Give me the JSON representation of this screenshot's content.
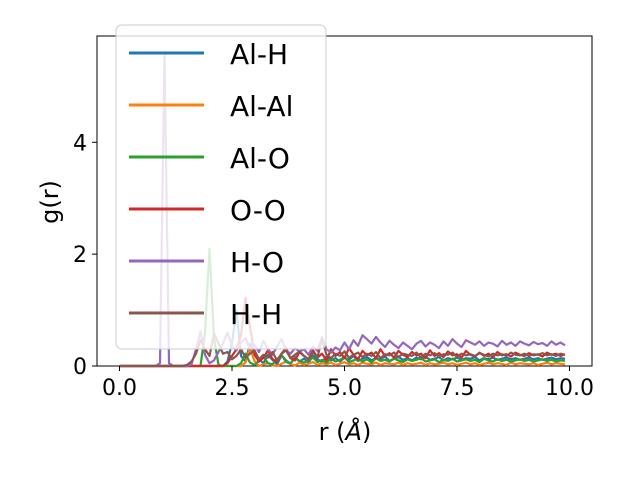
{
  "chart_data": {
    "type": "line",
    "title": "",
    "xlabel_text": "r (",
    "xlabel_unit": "Å",
    "xlabel_close": ")",
    "ylabel": "g(r)",
    "xlim": [
      -0.5,
      10.5
    ],
    "ylim": [
      0,
      5.9
    ],
    "xticks": [
      0.0,
      2.5,
      5.0,
      7.5,
      10.0
    ],
    "xtick_labels": [
      "0.0",
      "2.5",
      "5.0",
      "7.5",
      "10.0"
    ],
    "yticks": [
      0,
      2,
      4
    ],
    "ytick_labels": [
      "0",
      "2",
      "4"
    ],
    "grid": false,
    "legend_position": "top-left",
    "x_start": 0,
    "x_step": 0.1,
    "series": [
      {
        "name": "Al-H",
        "color": "#1f77b4",
        "values": [
          0,
          0,
          0,
          0,
          0,
          0,
          0,
          0,
          0,
          0,
          0,
          0,
          0,
          0,
          0,
          0,
          0,
          0,
          0,
          0,
          0,
          0,
          0,
          0,
          0.08,
          0.42,
          0.99,
          0.18,
          0.08,
          0.4,
          0.24,
          0.12,
          0.05,
          0.2,
          0.11,
          0.03,
          0.19,
          0.1,
          0.04,
          0.16,
          0.08,
          0.13,
          0.06,
          0.18,
          0.12,
          0.07,
          0.17,
          0.1,
          0.14,
          0.08,
          0.15,
          0.11,
          0.18,
          0.09,
          0.13,
          0.16,
          0.1,
          0.14,
          0.12,
          0.17,
          0.09,
          0.13,
          0.16,
          0.11,
          0.14,
          0.1,
          0.15,
          0.12,
          0.17,
          0.11,
          0.13,
          0.16,
          0.1,
          0.14,
          0.12,
          0.15,
          0.11,
          0.14,
          0.13,
          0.16,
          0.1,
          0.14,
          0.12,
          0.15,
          0.11,
          0.13,
          0.15,
          0.12,
          0.14,
          0.11,
          0.13,
          0.15,
          0.12,
          0.14,
          0.11,
          0.13,
          0.15,
          0.12,
          0.14,
          0.13
        ]
      },
      {
        "name": "Al-Al",
        "color": "#ff7f0e",
        "values": [
          0,
          0,
          0,
          0,
          0,
          0,
          0,
          0,
          0,
          0,
          0,
          0,
          0,
          0,
          0,
          0,
          0,
          0,
          0,
          0,
          0,
          0,
          0,
          0,
          0,
          0,
          0,
          0,
          0.06,
          0.32,
          0.09,
          0,
          0.03,
          0.05,
          0.01,
          0,
          0.04,
          0.08,
          0.03,
          0.01,
          0.06,
          0.02,
          0.04,
          0.07,
          0.02,
          0.05,
          0.03,
          0.06,
          0.02,
          0.04,
          0.07,
          0.03,
          0.05,
          0.02,
          0.06,
          0.04,
          0.03,
          0.06,
          0.02,
          0.05,
          0.04,
          0.03,
          0.06,
          0.02,
          0.05,
          0.03,
          0.04,
          0.06,
          0.02,
          0.05,
          0.03,
          0.04,
          0.06,
          0.03,
          0.05,
          0.02,
          0.04,
          0.06,
          0.03,
          0.05,
          0.02,
          0.04,
          0.06,
          0.03,
          0.05,
          0.04,
          0.02,
          0.06,
          0.03,
          0.05,
          0.04,
          0.03,
          0.05,
          0.02,
          0.04,
          0.06,
          0.03,
          0.05,
          0.04,
          0.03
        ]
      },
      {
        "name": "Al-O",
        "color": "#2ca02c",
        "values": [
          0,
          0,
          0,
          0,
          0,
          0,
          0,
          0,
          0,
          0,
          0,
          0,
          0,
          0,
          0,
          0,
          0,
          0,
          0,
          0.6,
          2.1,
          0.5,
          0.02,
          0,
          0,
          0,
          0,
          0.05,
          0.22,
          0.06,
          0.02,
          0.09,
          0.16,
          0.05,
          0.03,
          0.12,
          0.2,
          0.07,
          0.05,
          0.14,
          0.09,
          0.06,
          0.1,
          0.15,
          0.07,
          0.11,
          0.06,
          0.13,
          0.08,
          0.11,
          0.16,
          0.07,
          0.1,
          0.13,
          0.08,
          0.12,
          0.06,
          0.14,
          0.09,
          0.11,
          0.08,
          0.13,
          0.1,
          0.07,
          0.12,
          0.09,
          0.11,
          0.14,
          0.08,
          0.1,
          0.12,
          0.07,
          0.11,
          0.09,
          0.13,
          0.08,
          0.1,
          0.12,
          0.09,
          0.11,
          0.07,
          0.13,
          0.1,
          0.08,
          0.12,
          0.09,
          0.11,
          0.08,
          0.1,
          0.12,
          0.09,
          0.11,
          0.08,
          0.1,
          0.12,
          0.09,
          0.11,
          0.08,
          0.1,
          0.09
        ]
      },
      {
        "name": "O-O",
        "color": "#d62728",
        "values": [
          0,
          0,
          0,
          0,
          0,
          0,
          0,
          0,
          0,
          0,
          0,
          0,
          0,
          0,
          0,
          0,
          0,
          0,
          0,
          0,
          0,
          0,
          0,
          0,
          0.05,
          0.18,
          0.3,
          0.55,
          1.22,
          0.7,
          0.2,
          0.08,
          0.15,
          0.28,
          0.12,
          0.08,
          0.22,
          0.32,
          0.14,
          0.1,
          0.25,
          0.18,
          0.12,
          0.28,
          0.15,
          0.22,
          0.1,
          0.3,
          0.18,
          0.25,
          0.14,
          0.32,
          0.2,
          0.12,
          0.27,
          0.19,
          0.24,
          0.14,
          0.3,
          0.18,
          0.23,
          0.15,
          0.27,
          0.2,
          0.16,
          0.25,
          0.19,
          0.22,
          0.14,
          0.28,
          0.18,
          0.23,
          0.16,
          0.26,
          0.19,
          0.21,
          0.15,
          0.27,
          0.2,
          0.17,
          0.24,
          0.18,
          0.22,
          0.16,
          0.25,
          0.19,
          0.21,
          0.17,
          0.24,
          0.2,
          0.18,
          0.23,
          0.19,
          0.21,
          0.17,
          0.24,
          0.2,
          0.22,
          0.18,
          0.21
        ]
      },
      {
        "name": "H-O",
        "color": "#9467bd",
        "values": [
          0,
          0,
          0,
          0,
          0,
          0,
          0,
          0,
          0,
          0.05,
          5.6,
          0.05,
          0,
          0,
          0,
          0,
          0.03,
          0.3,
          0.62,
          0.2,
          0.05,
          0.1,
          0.25,
          0.4,
          0.6,
          0.35,
          0.28,
          0.42,
          0.5,
          0.3,
          0.38,
          0.25,
          0.45,
          0.3,
          0.2,
          0.35,
          0.48,
          0.28,
          0.22,
          0.32,
          0.26,
          0.3,
          0.2,
          0.35,
          0.27,
          0.52,
          0.3,
          0.24,
          0.33,
          0.28,
          0.42,
          0.3,
          0.46,
          0.36,
          0.55,
          0.48,
          0.4,
          0.52,
          0.42,
          0.34,
          0.45,
          0.38,
          0.32,
          0.42,
          0.36,
          0.3,
          0.4,
          0.45,
          0.35,
          0.42,
          0.38,
          0.32,
          0.44,
          0.36,
          0.48,
          0.4,
          0.34,
          0.46,
          0.42,
          0.38,
          0.44,
          0.36,
          0.42,
          0.4,
          0.35,
          0.45,
          0.38,
          0.42,
          0.36,
          0.44,
          0.4,
          0.37,
          0.43,
          0.39,
          0.41,
          0.36,
          0.44,
          0.38,
          0.42,
          0.37
        ]
      },
      {
        "name": "H-H",
        "color": "#8c564b",
        "values": [
          0,
          0,
          0,
          0,
          0,
          0,
          0,
          0,
          0,
          0,
          0,
          0,
          0,
          0,
          0,
          0.02,
          0.08,
          0.22,
          0.46,
          0.3,
          0.18,
          0.58,
          0.4,
          0.22,
          0.25,
          0.12,
          0.18,
          0.3,
          0.15,
          0.22,
          0.28,
          0.12,
          0.2,
          0.15,
          0.25,
          0.1,
          0.22,
          0.28,
          0.14,
          0.2,
          0.26,
          0.18,
          0.12,
          0.24,
          0.16,
          0.48,
          0.2,
          0.14,
          0.22,
          0.18,
          0.26,
          0.15,
          0.2,
          0.24,
          0.16,
          0.22,
          0.18,
          0.25,
          0.14,
          0.21,
          0.19,
          0.24,
          0.16,
          0.22,
          0.2,
          0.18,
          0.24,
          0.15,
          0.22,
          0.19,
          0.23,
          0.17,
          0.21,
          0.2,
          0.24,
          0.16,
          0.22,
          0.19,
          0.21,
          0.18,
          0.23,
          0.2,
          0.17,
          0.22,
          0.19,
          0.21,
          0.18,
          0.24,
          0.2,
          0.19,
          0.22,
          0.18,
          0.21,
          0.2,
          0.23,
          0.19,
          0.21,
          0.18,
          0.22,
          0.2
        ]
      }
    ]
  }
}
